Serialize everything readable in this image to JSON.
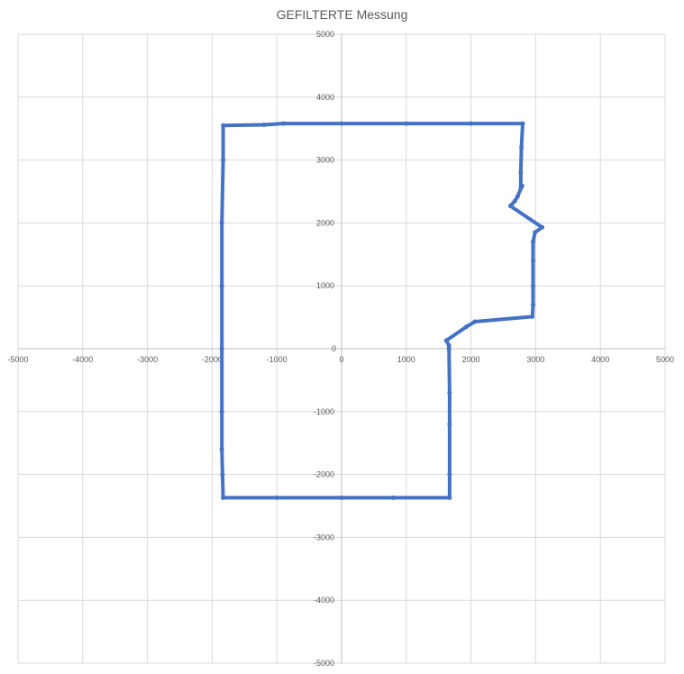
{
  "chart_data": {
    "type": "scatter",
    "title": "GEFILTERTE Messung",
    "xlabel": "",
    "ylabel": "",
    "xlim": [
      -5000,
      5000
    ],
    "ylim": [
      -5000,
      5000
    ],
    "x_ticks": [
      -5000,
      -4000,
      -3000,
      -2000,
      -1000,
      0,
      1000,
      2000,
      3000,
      4000,
      5000
    ],
    "y_ticks": [
      -5000,
      -4000,
      -3000,
      -2000,
      -1000,
      0,
      1000,
      2000,
      3000,
      4000,
      5000
    ],
    "x_tick_labels": [
      "-5000",
      "-4000",
      "-3000",
      "-2000",
      "-1000",
      "0",
      "1000",
      "2000",
      "3000",
      "4000",
      "5000"
    ],
    "y_tick_labels": [
      "-5000",
      "-4000",
      "-3000",
      "-2000",
      "-1000",
      "0",
      "1000",
      "2000",
      "3000",
      "4000",
      "5000"
    ],
    "grid": true,
    "axes_cross_at_zero": true,
    "series": [
      {
        "color": "#4472C4",
        "marker": "circle",
        "connected": true,
        "x": [
          -1850,
          -1850,
          -1850,
          -1850,
          -1850,
          -1830,
          -1830,
          -1200,
          -900,
          0,
          1000,
          2000,
          2800,
          2780,
          2770,
          2770,
          2790,
          2720,
          2680,
          2610,
          3100,
          2990,
          2960,
          2960,
          2960,
          2960,
          2950,
          2060,
          1930,
          1620,
          1660,
          1660,
          1670,
          1670,
          1670,
          1670,
          800,
          0,
          -1000,
          -1830,
          -1840,
          -1850
        ],
        "y": [
          -1600,
          -1000,
          0,
          1000,
          2000,
          3000,
          3550,
          3560,
          3580,
          3580,
          3580,
          3580,
          3580,
          3200,
          2800,
          2550,
          2590,
          2420,
          2350,
          2270,
          1930,
          1850,
          1700,
          1400,
          1000,
          700,
          510,
          430,
          350,
          130,
          50,
          0,
          -700,
          -1200,
          -2000,
          -2370,
          -2370,
          -2370,
          -2370,
          -2370,
          -2000,
          -1600
        ]
      }
    ]
  }
}
